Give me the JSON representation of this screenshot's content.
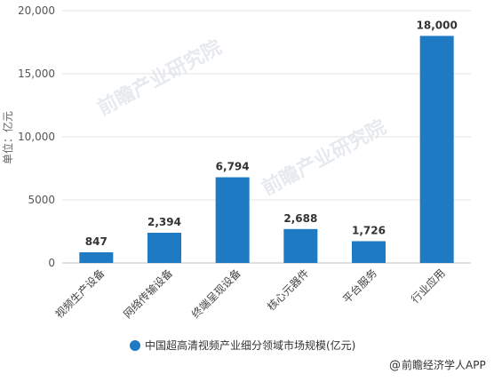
{
  "chart_data": {
    "type": "bar",
    "categories": [
      "视频生产设备",
      "网络传输设备",
      "终端呈现设备",
      "核心元器件",
      "平台服务",
      "行业应用"
    ],
    "series": [
      {
        "name": "中国超高清视频产业细分领域市场规模(亿元)",
        "values": [
          847,
          2394,
          6794,
          2688,
          1726,
          18000
        ]
      }
    ],
    "data_labels": [
      "847",
      "2,394",
      "6,794",
      "2,688",
      "1,726",
      "18,000"
    ],
    "ylabel": "单位：亿元",
    "ylim": [
      0,
      20000
    ],
    "yticks": [
      0,
      5000,
      10000,
      15000,
      20000
    ],
    "ytick_labels": [
      "0",
      "5000",
      "10,000",
      "15,000",
      "20,000"
    ],
    "grid": true,
    "legend_position": "bottom-center",
    "bar_color": "#1f7ac4"
  },
  "watermark": "前瞻产业研究院",
  "source": "前瞻经济学人APP"
}
